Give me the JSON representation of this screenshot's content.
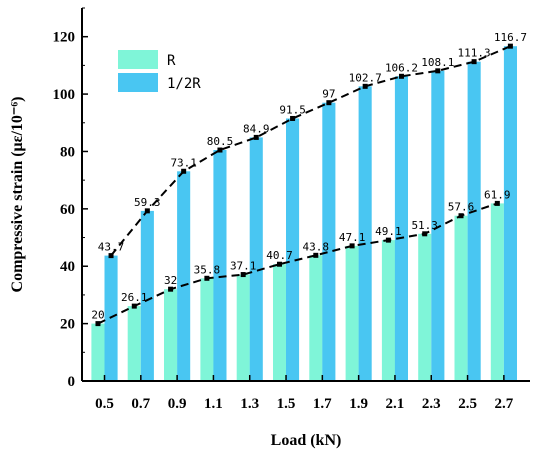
{
  "chart_data": {
    "type": "bar",
    "xlabel": "Load (kN)",
    "ylabel": "Compressive strain (με/10⁻⁶)",
    "ylim": [
      0,
      130
    ],
    "yticks": [
      0,
      20,
      40,
      60,
      80,
      100,
      120
    ],
    "categories": [
      "0.5",
      "0.7",
      "0.9",
      "1.1",
      "1.3",
      "1.5",
      "1.7",
      "1.9",
      "2.1",
      "2.3",
      "2.5",
      "2.7"
    ],
    "series": [
      {
        "name": "R",
        "color": "#7ff5d8",
        "values": [
          20,
          26.1,
          32,
          35.8,
          37.1,
          40.7,
          43.8,
          47.1,
          49.1,
          51.3,
          57.6,
          61.9
        ],
        "labels": [
          "20",
          "26.1",
          "32",
          "35.8",
          "37.1",
          "40.7",
          "43.8",
          "47.1",
          "49.1",
          "51.3",
          "57.6",
          "61.9"
        ]
      },
      {
        "name": "1/2R",
        "color": "#49c6f2",
        "values": [
          43.7,
          59.3,
          73.1,
          80.5,
          84.9,
          91.5,
          97,
          102.7,
          106.2,
          108.1,
          111.3,
          116.7
        ],
        "labels": [
          "43.7",
          "59.3",
          "73.1",
          "80.5",
          "84.9",
          "91.5",
          "97",
          "102.7",
          "106.2",
          "108.1",
          "111.3",
          "116.7"
        ]
      }
    ],
    "trend_lines": "dashed black line with square markers through bar tops of each series",
    "legend_position": "top-left",
    "grid": false
  }
}
